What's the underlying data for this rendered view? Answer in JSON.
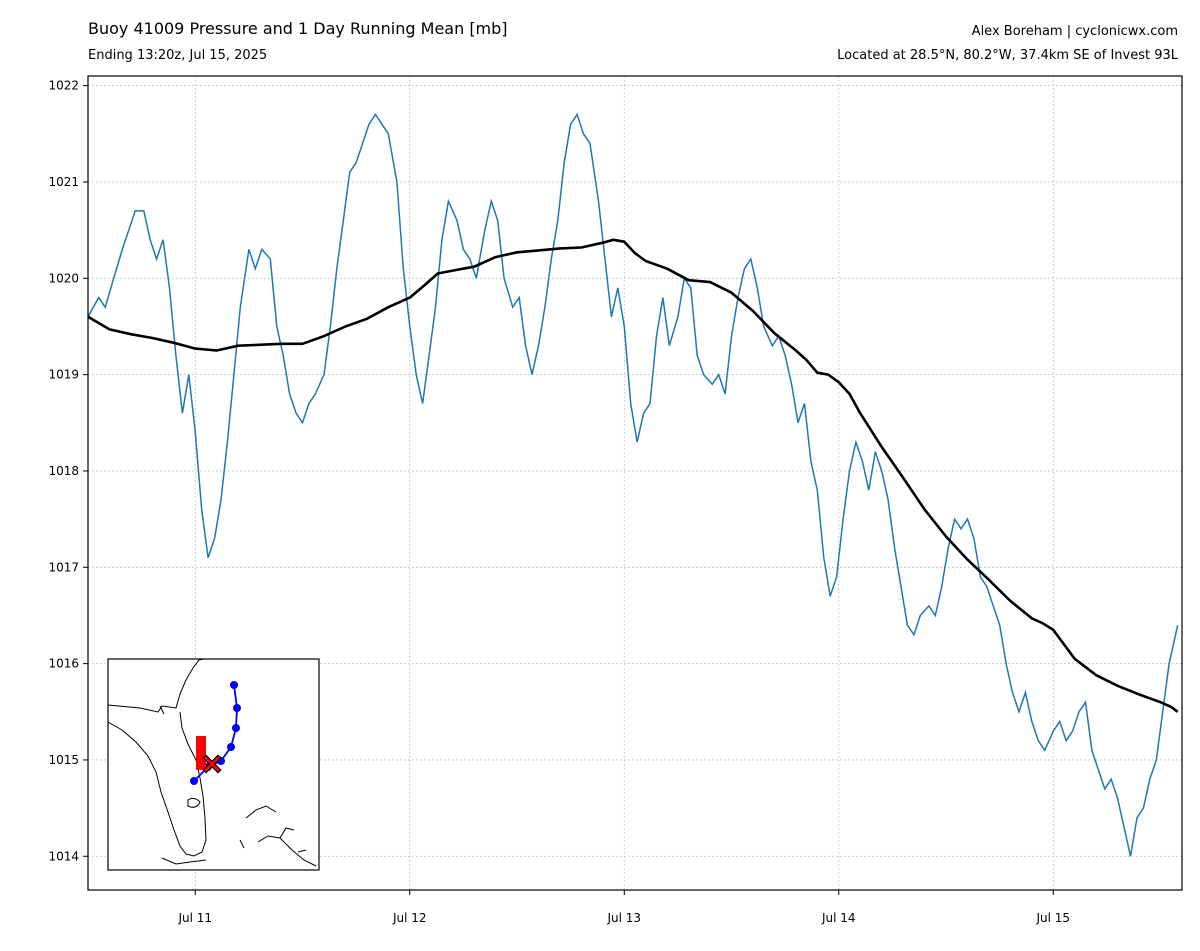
{
  "header": {
    "title": "Buoy 41009 Pressure and 1 Day Running Mean [mb]",
    "subtitle": "Ending 13:20z, Jul 15, 2025",
    "credit": "Alex Boreham | cyclonicwx.com",
    "location": "Located at 28.5°N, 80.2°W, 37.4km SE of Invest 93L"
  },
  "colors": {
    "pressure": "#1f77b4",
    "mean": "#000000",
    "track": "#0000ff",
    "marker": "#ff0000"
  },
  "chart_data": {
    "type": "line",
    "title": "Buoy 41009 Pressure and 1 Day Running Mean [mb]",
    "xlabel": "",
    "ylabel": "",
    "xlim": [
      10.5,
      15.6
    ],
    "ylim": [
      1013.65,
      1022.1
    ],
    "grid": true,
    "x_ticks": [
      {
        "value": 11,
        "label": "Jul 11"
      },
      {
        "value": 12,
        "label": "Jul 12"
      },
      {
        "value": 13,
        "label": "Jul 13"
      },
      {
        "value": 14,
        "label": "Jul 14"
      },
      {
        "value": 15,
        "label": "Jul 15"
      }
    ],
    "y_ticks": [
      1014,
      1015,
      1016,
      1017,
      1018,
      1019,
      1020,
      1021,
      1022
    ],
    "series": [
      {
        "style": "pressure",
        "points": [
          [
            10.5,
            1019.6
          ],
          [
            10.55,
            1019.8
          ],
          [
            10.58,
            1019.7
          ],
          [
            10.62,
            1020.0
          ],
          [
            10.66,
            1020.3
          ],
          [
            10.69,
            1020.5
          ],
          [
            10.72,
            1020.7
          ],
          [
            10.76,
            1020.7
          ],
          [
            10.79,
            1020.4
          ],
          [
            10.82,
            1020.2
          ],
          [
            10.85,
            1020.4
          ],
          [
            10.88,
            1019.9
          ],
          [
            10.91,
            1019.2
          ],
          [
            10.94,
            1018.6
          ],
          [
            10.97,
            1019.0
          ],
          [
            11.0,
            1018.4
          ],
          [
            11.03,
            1017.6
          ],
          [
            11.06,
            1017.1
          ],
          [
            11.09,
            1017.3
          ],
          [
            11.12,
            1017.7
          ],
          [
            11.15,
            1018.3
          ],
          [
            11.18,
            1019.0
          ],
          [
            11.21,
            1019.7
          ],
          [
            11.25,
            1020.3
          ],
          [
            11.28,
            1020.1
          ],
          [
            11.31,
            1020.3
          ],
          [
            11.35,
            1020.2
          ],
          [
            11.38,
            1019.5
          ],
          [
            11.41,
            1019.2
          ],
          [
            11.44,
            1018.8
          ],
          [
            11.47,
            1018.6
          ],
          [
            11.5,
            1018.5
          ],
          [
            11.53,
            1018.7
          ],
          [
            11.56,
            1018.8
          ],
          [
            11.6,
            1019.0
          ],
          [
            11.63,
            1019.5
          ],
          [
            11.66,
            1020.1
          ],
          [
            11.69,
            1020.6
          ],
          [
            11.72,
            1021.1
          ],
          [
            11.75,
            1021.2
          ],
          [
            11.78,
            1021.4
          ],
          [
            11.81,
            1021.6
          ],
          [
            11.84,
            1021.7
          ],
          [
            11.87,
            1021.6
          ],
          [
            11.9,
            1021.5
          ],
          [
            11.94,
            1021.0
          ],
          [
            11.97,
            1020.1
          ],
          [
            12.0,
            1019.5
          ],
          [
            12.03,
            1019.0
          ],
          [
            12.06,
            1018.7
          ],
          [
            12.09,
            1019.2
          ],
          [
            12.12,
            1019.7
          ],
          [
            12.15,
            1020.4
          ],
          [
            12.18,
            1020.8
          ],
          [
            12.22,
            1020.6
          ],
          [
            12.25,
            1020.3
          ],
          [
            12.28,
            1020.2
          ],
          [
            12.31,
            1020.0
          ],
          [
            12.35,
            1020.5
          ],
          [
            12.38,
            1020.8
          ],
          [
            12.41,
            1020.6
          ],
          [
            12.44,
            1020.0
          ],
          [
            12.48,
            1019.7
          ],
          [
            12.51,
            1019.8
          ],
          [
            12.54,
            1019.3
          ],
          [
            12.57,
            1019.0
          ],
          [
            12.6,
            1019.3
          ],
          [
            12.63,
            1019.7
          ],
          [
            12.66,
            1020.2
          ],
          [
            12.69,
            1020.6
          ],
          [
            12.72,
            1021.2
          ],
          [
            12.75,
            1021.6
          ],
          [
            12.78,
            1021.7
          ],
          [
            12.81,
            1021.5
          ],
          [
            12.84,
            1021.4
          ],
          [
            12.88,
            1020.8
          ],
          [
            12.91,
            1020.2
          ],
          [
            12.94,
            1019.6
          ],
          [
            12.97,
            1019.9
          ],
          [
            13.0,
            1019.5
          ],
          [
            13.03,
            1018.7
          ],
          [
            13.06,
            1018.3
          ],
          [
            13.09,
            1018.6
          ],
          [
            13.12,
            1018.7
          ],
          [
            13.15,
            1019.4
          ],
          [
            13.18,
            1019.8
          ],
          [
            13.21,
            1019.3
          ],
          [
            13.25,
            1019.6
          ],
          [
            13.28,
            1020.0
          ],
          [
            13.31,
            1019.9
          ],
          [
            13.34,
            1019.2
          ],
          [
            13.37,
            1019.0
          ],
          [
            13.41,
            1018.9
          ],
          [
            13.44,
            1019.0
          ],
          [
            13.47,
            1018.8
          ],
          [
            13.5,
            1019.4
          ],
          [
            13.53,
            1019.8
          ],
          [
            13.56,
            1020.1
          ],
          [
            13.59,
            1020.2
          ],
          [
            13.62,
            1019.9
          ],
          [
            13.65,
            1019.5
          ],
          [
            13.69,
            1019.3
          ],
          [
            13.72,
            1019.4
          ],
          [
            13.75,
            1019.2
          ],
          [
            13.78,
            1018.9
          ],
          [
            13.81,
            1018.5
          ],
          [
            13.84,
            1018.7
          ],
          [
            13.87,
            1018.1
          ],
          [
            13.9,
            1017.8
          ],
          [
            13.93,
            1017.1
          ],
          [
            13.96,
            1016.7
          ],
          [
            13.99,
            1016.9
          ],
          [
            14.02,
            1017.5
          ],
          [
            14.05,
            1018.0
          ],
          [
            14.08,
            1018.3
          ],
          [
            14.11,
            1018.1
          ],
          [
            14.14,
            1017.8
          ],
          [
            14.17,
            1018.2
          ],
          [
            14.2,
            1018.0
          ],
          [
            14.23,
            1017.7
          ],
          [
            14.26,
            1017.2
          ],
          [
            14.29,
            1016.8
          ],
          [
            14.32,
            1016.4
          ],
          [
            14.35,
            1016.3
          ],
          [
            14.38,
            1016.5
          ],
          [
            14.42,
            1016.6
          ],
          [
            14.45,
            1016.5
          ],
          [
            14.48,
            1016.8
          ],
          [
            14.51,
            1017.2
          ],
          [
            14.54,
            1017.5
          ],
          [
            14.57,
            1017.4
          ],
          [
            14.6,
            1017.5
          ],
          [
            14.63,
            1017.3
          ],
          [
            14.66,
            1016.9
          ],
          [
            14.69,
            1016.8
          ],
          [
            14.72,
            1016.6
          ],
          [
            14.75,
            1016.4
          ],
          [
            14.78,
            1016.0
          ],
          [
            14.81,
            1015.7
          ],
          [
            14.84,
            1015.5
          ],
          [
            14.87,
            1015.7
          ],
          [
            14.9,
            1015.4
          ],
          [
            14.93,
            1015.2
          ],
          [
            14.96,
            1015.1
          ],
          [
            15.0,
            1015.3
          ],
          [
            15.03,
            1015.4
          ],
          [
            15.06,
            1015.2
          ],
          [
            15.09,
            1015.3
          ],
          [
            15.12,
            1015.5
          ],
          [
            15.15,
            1015.6
          ],
          [
            15.18,
            1015.1
          ],
          [
            15.21,
            1014.9
          ],
          [
            15.24,
            1014.7
          ],
          [
            15.27,
            1014.8
          ],
          [
            15.3,
            1014.6
          ],
          [
            15.33,
            1014.3
          ],
          [
            15.36,
            1014.0
          ],
          [
            15.39,
            1014.4
          ],
          [
            15.42,
            1014.5
          ],
          [
            15.45,
            1014.8
          ],
          [
            15.48,
            1015.0
          ],
          [
            15.51,
            1015.5
          ],
          [
            15.54,
            1016.0
          ],
          [
            15.57,
            1016.3
          ],
          [
            15.58,
            1016.4
          ]
        ]
      },
      {
        "style": "mean",
        "points": [
          [
            10.5,
            1019.6
          ],
          [
            10.6,
            1019.47
          ],
          [
            10.7,
            1019.42
          ],
          [
            10.8,
            1019.38
          ],
          [
            10.9,
            1019.33
          ],
          [
            11.0,
            1019.27
          ],
          [
            11.1,
            1019.25
          ],
          [
            11.2,
            1019.3
          ],
          [
            11.3,
            1019.31
          ],
          [
            11.4,
            1019.32
          ],
          [
            11.5,
            1019.32
          ],
          [
            11.6,
            1019.4
          ],
          [
            11.7,
            1019.5
          ],
          [
            11.8,
            1019.58
          ],
          [
            11.9,
            1019.7
          ],
          [
            12.0,
            1019.8
          ],
          [
            12.07,
            1019.93
          ],
          [
            12.13,
            1020.05
          ],
          [
            12.2,
            1020.08
          ],
          [
            12.3,
            1020.12
          ],
          [
            12.4,
            1020.22
          ],
          [
            12.5,
            1020.27
          ],
          [
            12.6,
            1020.29
          ],
          [
            12.7,
            1020.31
          ],
          [
            12.8,
            1020.32
          ],
          [
            12.9,
            1020.37
          ],
          [
            12.95,
            1020.4
          ],
          [
            13.0,
            1020.38
          ],
          [
            13.05,
            1020.26
          ],
          [
            13.1,
            1020.18
          ],
          [
            13.2,
            1020.1
          ],
          [
            13.3,
            1019.98
          ],
          [
            13.4,
            1019.96
          ],
          [
            13.5,
            1019.85
          ],
          [
            13.6,
            1019.66
          ],
          [
            13.7,
            1019.43
          ],
          [
            13.8,
            1019.25
          ],
          [
            13.85,
            1019.15
          ],
          [
            13.9,
            1019.02
          ],
          [
            13.95,
            1019.0
          ],
          [
            14.0,
            1018.92
          ],
          [
            14.05,
            1018.8
          ],
          [
            14.1,
            1018.6
          ],
          [
            14.2,
            1018.25
          ],
          [
            14.3,
            1017.93
          ],
          [
            14.4,
            1017.6
          ],
          [
            14.5,
            1017.32
          ],
          [
            14.6,
            1017.08
          ],
          [
            14.7,
            1016.87
          ],
          [
            14.8,
            1016.65
          ],
          [
            14.9,
            1016.47
          ],
          [
            14.95,
            1016.42
          ],
          [
            15.0,
            1016.35
          ],
          [
            15.05,
            1016.2
          ],
          [
            15.1,
            1016.05
          ],
          [
            15.2,
            1015.88
          ],
          [
            15.3,
            1015.77
          ],
          [
            15.4,
            1015.68
          ],
          [
            15.5,
            1015.6
          ],
          [
            15.55,
            1015.55
          ],
          [
            15.58,
            1015.5
          ]
        ]
      }
    ]
  },
  "inset": {
    "track_points": [
      [
        234,
        685
      ],
      [
        237,
        708
      ],
      [
        236,
        728
      ],
      [
        231,
        747
      ],
      [
        221,
        761
      ],
      [
        208,
        767
      ],
      [
        194,
        781
      ]
    ],
    "buoy": [
      212,
      764
    ],
    "bar": [
      196,
      736,
      10,
      34
    ]
  }
}
